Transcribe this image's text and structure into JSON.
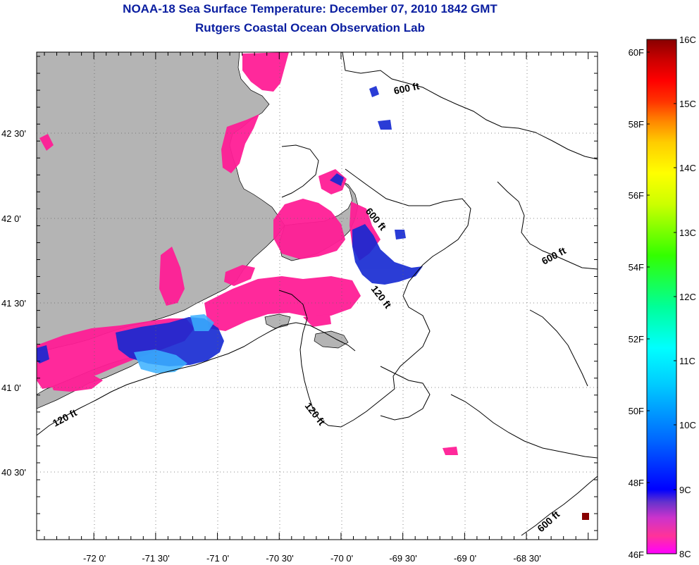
{
  "title": {
    "line1": "NOAA-18 Sea Surface Temperature:  December 07, 2010 1842 GMT",
    "line2": "Rutgers Coastal Ocean Observation Lab"
  },
  "colors": {
    "title": "#0a1ea0",
    "land": "#b4b4b4",
    "warm_sst": "#ff1e96",
    "cold_sst": "#1428d2"
  },
  "map": {
    "lon_labels": [
      "-72 0'",
      "-71 30'",
      "-71 0'",
      "-70 30'",
      "-70 0'",
      "-69 30'",
      "-69 0'",
      "-68 30'"
    ],
    "lat_labels": [
      "42 30'",
      "42 0'",
      "41 30'",
      "41 0'",
      "40 30'"
    ],
    "contour_labels": [
      "600 ft",
      "600 ft",
      "600 ft",
      "120 ft",
      "120 ft",
      "120 ft",
      "600 ft"
    ]
  },
  "colorbar": {
    "celsius_labels": [
      "16C",
      "15C",
      "14C",
      "13C",
      "12C",
      "11C",
      "10C",
      "9C",
      "8C"
    ],
    "fahrenheit_labels": [
      "60F",
      "58F",
      "56F",
      "54F",
      "52F",
      "50F",
      "48F",
      "46F"
    ]
  }
}
